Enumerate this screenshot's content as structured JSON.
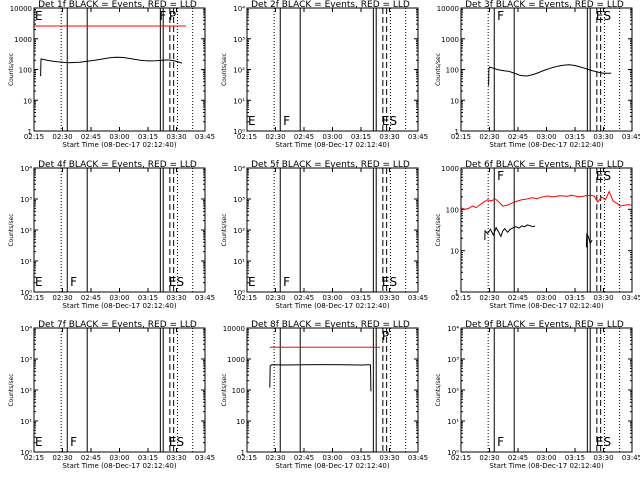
{
  "chart_data": [
    {
      "type": "line",
      "title": "Det 1f BLACK = Events, RED = LLD",
      "xlabel": "Start Time (08-Dec-17 02:12:40)",
      "ylabel": "Counts/sec",
      "x_ticks": [
        "02:15",
        "02:30",
        "02:45",
        "03:00",
        "03:15",
        "03:30",
        "03:45"
      ],
      "y_ticks": [
        "1",
        "10",
        "100",
        "1000",
        "10000"
      ],
      "y_scale": "log",
      "ylim": [
        1,
        10000
      ],
      "markers": [
        "E",
        "F",
        "P"
      ],
      "series": [
        {
          "color": "black",
          "x": [
            3.5,
            3.7,
            4.0,
            6.0,
            8.0,
            10.0,
            12.0,
            14.0,
            16.0,
            18.0,
            20.0,
            22.0,
            24.0,
            26.0,
            28.0,
            30.0,
            32.0,
            34.0,
            36.0,
            38.0,
            40.0,
            42.0,
            44.0,
            46.0,
            48.0,
            50.0,
            52.0,
            54.0,
            56.0,
            58.0,
            60.0,
            62.0,
            64.0,
            66.0,
            68.0,
            70.0,
            72.0,
            74.0,
            76.0,
            78.0
          ],
          "y": [
            60,
            220,
            220,
            205,
            195,
            185,
            180,
            175,
            170,
            168,
            168,
            170,
            172,
            178,
            185,
            192,
            200,
            210,
            220,
            230,
            240,
            248,
            252,
            248,
            240,
            230,
            220,
            210,
            200,
            195,
            190,
            190,
            192,
            196,
            200,
            205,
            200,
            190,
            175,
            160
          ]
        },
        {
          "color": "red",
          "x": [
            0,
            80
          ],
          "y": [
            2600,
            2600
          ]
        }
      ]
    },
    {
      "type": "line",
      "title": "Det 2f BLACK = Events, RED = LLD",
      "xlabel": "Start Time (08-Dec-17 02:12:40)",
      "ylabel": "Counts/sec",
      "x_ticks": [
        "02:15",
        "02:30",
        "02:45",
        "03:00",
        "03:15",
        "03:30",
        "03:45"
      ],
      "y_ticks": [
        "10⁰",
        "10¹",
        "10²",
        "10³",
        "10⁴"
      ],
      "y_scale": "log",
      "ylim": [
        1,
        10000
      ],
      "markers": [
        "E",
        "F",
        "ES"
      ],
      "series": []
    },
    {
      "type": "line",
      "title": "Det 3f BLACK = Events, RED = LLD",
      "xlabel": "Start Time (08-Dec-17 02:12:40)",
      "ylabel": "Counts/sec",
      "x_ticks": [
        "02:15",
        "02:30",
        "02:45",
        "03:00",
        "03:15",
        "03:30",
        "03:45"
      ],
      "y_ticks": [
        "1",
        "10",
        "100",
        "1000",
        "10000"
      ],
      "y_scale": "log",
      "ylim": [
        1,
        10000
      ],
      "markers": [
        "F",
        "ES"
      ],
      "series": [
        {
          "color": "black",
          "x": [
            14.5,
            14.7,
            15.0,
            17.0,
            19.0,
            21.0,
            23.0,
            25.0,
            27.0,
            29.0,
            31.0,
            33.0,
            35.0,
            37.0,
            39.0,
            41.0,
            43.0,
            45.0,
            47.0,
            49.0,
            51.0,
            53.0,
            55.0,
            57.0,
            59.0,
            61.0,
            63.0,
            65.0,
            67.0,
            69.0,
            71.0,
            73.0,
            75.0,
            77.0,
            79.0
          ],
          "y": [
            30,
            100,
            120,
            110,
            100,
            95,
            90,
            88,
            80,
            72,
            65,
            62,
            62,
            66,
            72,
            80,
            90,
            100,
            110,
            120,
            128,
            135,
            140,
            142,
            138,
            130,
            120,
            110,
            100,
            92,
            85,
            80,
            76,
            75,
            75
          ]
        }
      ]
    },
    {
      "type": "line",
      "title": "Det 4f BLACK = Events, RED = LLD",
      "xlabel": "Start Time (08-Dec-17 02:12:40)",
      "ylabel": "Counts/sec",
      "x_ticks": [
        "02:15",
        "02:30",
        "02:45",
        "03:00",
        "03:15",
        "03:30",
        "03:45"
      ],
      "y_ticks": [
        "10⁰",
        "10¹",
        "10²",
        "10³",
        "10⁴"
      ],
      "y_scale": "log",
      "ylim": [
        1,
        10000
      ],
      "markers": [
        "E",
        "F",
        "ES"
      ],
      "series": []
    },
    {
      "type": "line",
      "title": "Det 5f BLACK = Events, RED = LLD",
      "xlabel": "Start Time (08-Dec-17 02:12:40)",
      "ylabel": "Counts/sec",
      "x_ticks": [
        "02:15",
        "02:30",
        "02:45",
        "03:00",
        "03:15",
        "03:30",
        "03:45"
      ],
      "y_ticks": [
        "10⁰",
        "10¹",
        "10²",
        "10³",
        "10⁴"
      ],
      "y_scale": "log",
      "ylim": [
        1,
        10000
      ],
      "markers": [
        "E",
        "F",
        "ES"
      ],
      "series": []
    },
    {
      "type": "line",
      "title": "Det 6f BLACK = Events, RED = LLD",
      "xlabel": "Start Time (08-Dec-17 02:12:40)",
      "ylabel": "Counts/sec",
      "x_ticks": [
        "02:15",
        "02:30",
        "02:45",
        "03:00",
        "03:15",
        "03:30",
        "03:45"
      ],
      "y_ticks": [
        "1",
        "10",
        "100",
        "1000"
      ],
      "y_scale": "log",
      "ylim": [
        1,
        1000
      ],
      "markers": [
        "F",
        "ES"
      ],
      "series": [
        {
          "color": "red",
          "x": [
            0,
            2,
            4,
            6,
            8,
            10,
            12,
            14,
            16,
            18,
            20,
            22,
            24,
            26,
            28,
            30,
            32,
            34,
            36,
            38,
            40,
            42,
            44,
            46,
            48,
            50,
            52,
            54,
            56,
            58,
            60,
            62,
            64,
            66,
            68,
            70,
            72,
            74,
            76,
            78,
            80,
            82,
            84,
            86,
            88,
            90
          ],
          "y": [
            110,
            100,
            105,
            120,
            110,
            130,
            150,
            170,
            160,
            180,
            150,
            120,
            125,
            135,
            150,
            160,
            170,
            175,
            185,
            190,
            180,
            195,
            205,
            210,
            200,
            205,
            215,
            210,
            205,
            220,
            210,
            200,
            205,
            215,
            220,
            210,
            150,
            200,
            170,
            270,
            160,
            140,
            120,
            125,
            130,
            125
          ]
        },
        {
          "color": "black",
          "x": [
            12.5,
            12.7,
            14.0,
            15.5,
            17.0,
            18.5,
            20.0,
            21.0,
            22.0,
            23.0,
            24.5,
            26.0,
            27.5,
            29.0,
            30.5,
            32.0,
            33.5,
            35.0,
            36.5,
            38.0,
            39.0
          ],
          "y": [
            18,
            30,
            26,
            33,
            24,
            36,
            27,
            22,
            30,
            34,
            28,
            33,
            36,
            38,
            35,
            40,
            38,
            42,
            40,
            38,
            40
          ]
        },
        {
          "color": "black",
          "x": [
            66.0,
            66.2,
            67.0,
            68.0,
            69.0
          ],
          "y": [
            12,
            25,
            22,
            15,
            18
          ]
        }
      ]
    },
    {
      "type": "line",
      "title": "Det 7f BLACK = Events, RED = LLD",
      "xlabel": "Start Time (08-Dec-17 02:12:40)",
      "ylabel": "Counts/sec",
      "x_ticks": [
        "02:15",
        "02:30",
        "02:45",
        "03:00",
        "03:15",
        "03:30",
        "03:45"
      ],
      "y_ticks": [
        "10⁰",
        "10¹",
        "10²",
        "10³",
        "10⁴"
      ],
      "y_scale": "log",
      "ylim": [
        1,
        10000
      ],
      "markers": [
        "E",
        "F",
        "ES"
      ],
      "series": []
    },
    {
      "type": "line",
      "title": "Det 8f BLACK = Events, RED = LLD",
      "xlabel": "Start Time (08-Dec-17 02:12:40)",
      "ylabel": "Counts/sec",
      "x_ticks": [
        "02:15",
        "02:30",
        "02:45",
        "03:00",
        "03:15",
        "03:30",
        "03:45"
      ],
      "y_ticks": [
        "1",
        "10",
        "100",
        "1000",
        "10000"
      ],
      "y_scale": "log",
      "ylim": [
        1,
        10000
      ],
      "markers": [
        "P"
      ],
      "series": [
        {
          "color": "black",
          "x": [
            12.0,
            12.2,
            13.0,
            20.0,
            30.0,
            40.0,
            50.0,
            60.0,
            65.0
          ],
          "y": [
            120,
            600,
            650,
            640,
            650,
            660,
            650,
            640,
            650
          ]
        },
        {
          "color": "black",
          "x": [
            65.0,
            65.2
          ],
          "y": [
            650,
            90
          ]
        },
        {
          "color": "red",
          "x": [
            12,
            70
          ],
          "y": [
            2400,
            2400
          ]
        }
      ]
    },
    {
      "type": "line",
      "title": "Det 9f BLACK = Events, RED = LLD",
      "xlabel": "Start Time (08-Dec-17 02:12:40)",
      "ylabel": "Counts/sec",
      "x_ticks": [
        "02:15",
        "02:30",
        "02:45",
        "03:00",
        "03:15",
        "03:30",
        "03:45"
      ],
      "y_ticks": [
        "10⁰",
        "10¹",
        "10²",
        "10³",
        "10⁴"
      ],
      "y_scale": "log",
      "ylim": [
        1,
        10000
      ],
      "markers": [
        "F",
        "ES"
      ],
      "series": []
    }
  ]
}
